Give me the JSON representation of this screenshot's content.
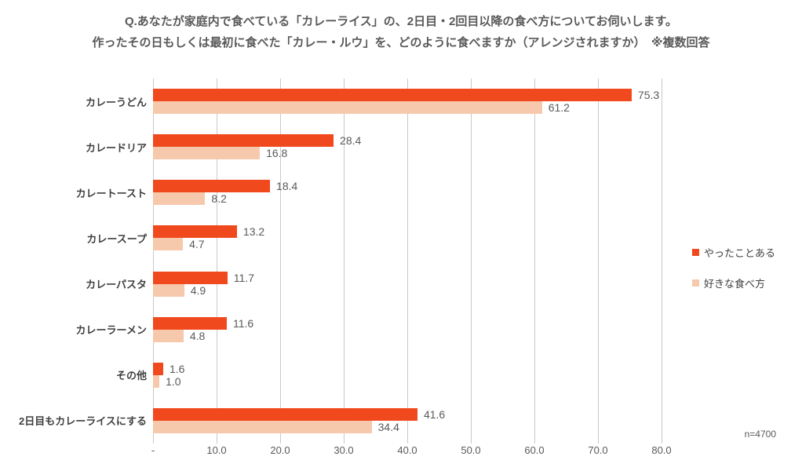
{
  "title": {
    "line1": "Q.あなたが家庭内で食べている「カレーライス」の、2日目・2回目以降の食べ方についてお伺いします。",
    "line2": "作ったその日もしくは最初に食べた「カレー・ルウ」を、どのように食べますか（アレンジされますか）　※複数回答"
  },
  "footnote": "n=4700",
  "colors": {
    "series1": "#f0491d",
    "series2": "#f6c9ac",
    "gridline": "#c9c9c9",
    "text_gray": "#595959",
    "category_text": "#3f3f3f"
  },
  "legend": {
    "items": [
      {
        "label": "やったことある",
        "color": "#f0491d"
      },
      {
        "label": "好きな食べ方",
        "color": "#f6c9ac"
      }
    ]
  },
  "chart_data": {
    "type": "bar",
    "orientation": "horizontal",
    "title": "Q.あなたが家庭内で食べている「カレーライス」の、2日目・2回目以降の食べ方についてお伺いします。作ったその日もしくは最初に食べた「カレー・ルウ」を、どのように食べますか（アレンジされますか）　※複数回答",
    "categories": [
      "カレーうどん",
      "カレードリア",
      "カレートースト",
      "カレースープ",
      "カレーパスタ",
      "カレーラーメン",
      "その他",
      "2日目もカレーライスにする"
    ],
    "series": [
      {
        "name": "やったことある",
        "color": "#f0491d",
        "values": [
          75.3,
          28.4,
          18.4,
          13.2,
          11.7,
          11.6,
          1.6,
          41.6
        ]
      },
      {
        "name": "好きな食べ方",
        "color": "#f6c9ac",
        "values": [
          61.2,
          16.8,
          8.2,
          4.7,
          4.9,
          4.8,
          1.0,
          34.4
        ]
      }
    ],
    "xlim": [
      0,
      80
    ],
    "xticks": [
      0,
      10,
      20,
      30,
      40,
      50,
      60,
      70,
      80
    ],
    "xticklabels": [
      "-",
      "10.0",
      "20.0",
      "30.0",
      "40.0",
      "50.0",
      "60.0",
      "70.0",
      "80.0"
    ],
    "grid": true,
    "value_labels": true,
    "value_label_format": "0.1f",
    "legend_position": "right",
    "sample_size": "n=4700"
  }
}
